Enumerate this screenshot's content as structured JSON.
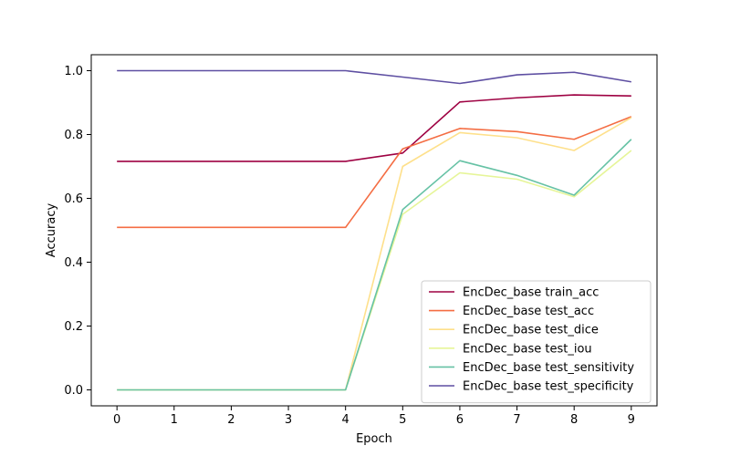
{
  "chart_data": {
    "type": "line",
    "title": "",
    "xlabel": "Epoch",
    "ylabel": "Accuracy",
    "x": [
      0,
      1,
      2,
      3,
      4,
      5,
      6,
      7,
      8,
      9
    ],
    "xticks": [
      "0",
      "1",
      "2",
      "3",
      "4",
      "5",
      "6",
      "7",
      "8",
      "9"
    ],
    "yticks": [
      "0.0",
      "0.2",
      "0.4",
      "0.6",
      "0.8",
      "1.0"
    ],
    "xlim": [
      -0.45,
      9.45
    ],
    "ylim": [
      -0.05,
      1.05
    ],
    "grid": false,
    "legend_position": "lower-right",
    "series": [
      {
        "name": "EncDec_base train_acc",
        "color": "#9e0142",
        "values": [
          0.716,
          0.716,
          0.716,
          0.716,
          0.716,
          0.742,
          0.902,
          0.915,
          0.924,
          0.921
        ]
      },
      {
        "name": "EncDec_base test_acc",
        "color": "#f46d43",
        "values": [
          0.509,
          0.509,
          0.509,
          0.509,
          0.509,
          0.755,
          0.819,
          0.809,
          0.785,
          0.856
        ]
      },
      {
        "name": "EncDec_base test_dice",
        "color": "#fee08b",
        "values": [
          0.0,
          0.0,
          0.0,
          0.0,
          0.0,
          0.7,
          0.806,
          0.79,
          0.75,
          0.853
        ]
      },
      {
        "name": "EncDec_base test_iou",
        "color": "#e6f598",
        "values": [
          0.0,
          0.0,
          0.0,
          0.0,
          0.0,
          0.55,
          0.68,
          0.66,
          0.605,
          0.75
        ]
      },
      {
        "name": "EncDec_base test_sensitivity",
        "color": "#66c2a5",
        "values": [
          0.0,
          0.0,
          0.0,
          0.0,
          0.0,
          0.565,
          0.718,
          0.672,
          0.61,
          0.785
        ]
      },
      {
        "name": "EncDec_base test_specificity",
        "color": "#5e4fa2",
        "values": [
          1.0,
          1.0,
          1.0,
          1.0,
          1.0,
          0.98,
          0.96,
          0.987,
          0.995,
          0.965
        ]
      }
    ]
  }
}
